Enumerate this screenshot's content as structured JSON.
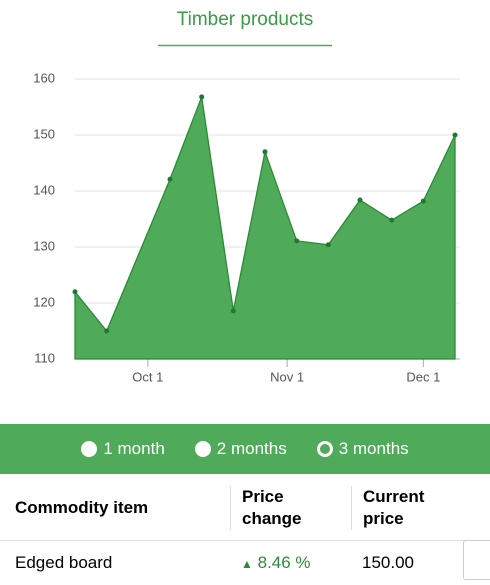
{
  "chart_data": {
    "type": "area",
    "title": "Timber products",
    "x": [
      0,
      1,
      3,
      4,
      5,
      6,
      7,
      8,
      9,
      10,
      11,
      12
    ],
    "series": [
      {
        "color": "#4fab59",
        "values": [
          122,
          115,
          142.1,
          156.8,
          118.6,
          147,
          131.1,
          130.4,
          138.4,
          134.8,
          138.2,
          150
        ]
      }
    ],
    "xlim": [
      0,
      12
    ],
    "xticks": [
      {
        "value": 2.3,
        "label": "Oct 1"
      },
      {
        "value": 6.7,
        "label": "Nov 1"
      },
      {
        "value": 11,
        "label": "Dec 1"
      }
    ],
    "ylim": [
      110,
      160
    ],
    "yticks": [
      110,
      120,
      130,
      140,
      150,
      160
    ],
    "grid": true
  },
  "controls": {
    "options": [
      "1 month",
      "2 months",
      "3 months"
    ],
    "selected": 2
  },
  "table": {
    "headers": [
      "Commodity item",
      "Price change",
      "Current price"
    ],
    "rows": [
      [
        "Edged board",
        "8.46 %",
        "150.00"
      ]
    ]
  }
}
